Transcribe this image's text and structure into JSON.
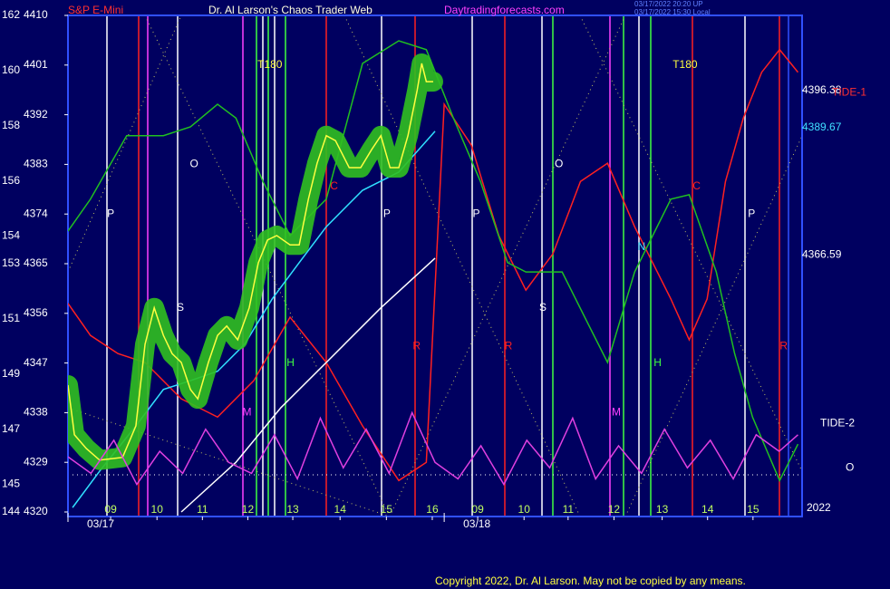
{
  "chart_data": {
    "type": "line",
    "title": "Dr. Al Larson's Chaos Trader Web",
    "subtitle": "S&P E-Mini",
    "site": "Daytradingforecasts.com",
    "stamp": [
      "03/17/2022 20:20 UP",
      "03/17/2022 15:30 Local"
    ],
    "copyright": "Copyright 2022, Dr. Al Larson. May not be copied by any means.",
    "year_label": "2022",
    "dates": [
      {
        "x": 0,
        "label": "03/17"
      },
      {
        "x": 8.2,
        "label": "03/18"
      }
    ],
    "xlim": [
      0,
      16
    ],
    "xticks": [
      {
        "value": 0.93,
        "label": "09"
      },
      {
        "value": 1.94,
        "label": "10"
      },
      {
        "value": 2.93,
        "label": "11"
      },
      {
        "value": 3.92,
        "label": "12"
      },
      {
        "value": 4.9,
        "label": "13"
      },
      {
        "value": 5.93,
        "label": "14"
      },
      {
        "value": 6.94,
        "label": "15"
      },
      {
        "value": 7.94,
        "label": "16"
      },
      {
        "value": 8.93,
        "label": "09"
      },
      {
        "value": 9.94,
        "label": "10"
      },
      {
        "value": 10.9,
        "label": "11"
      },
      {
        "value": 11.9,
        "label": "12"
      },
      {
        "value": 12.95,
        "label": "13"
      },
      {
        "value": 13.94,
        "label": "14"
      },
      {
        "value": 14.93,
        "label": "15"
      }
    ],
    "ylim": [
      4320,
      4410
    ],
    "yticks": [
      4320,
      4329,
      4338,
      4347,
      4356,
      4365,
      4374,
      4383,
      4392,
      4401,
      4410
    ],
    "y2lim": [
      144,
      162
    ],
    "y2ticks": [
      144,
      145,
      147,
      149,
      151,
      153,
      154,
      156,
      158,
      160,
      162
    ],
    "series": [
      {
        "color": "#ff2020",
        "x": [
          0,
          0.49,
          1.09,
          1.68,
          2.47,
          3.26,
          4.05,
          4.84,
          5.63,
          6.42,
          7.21,
          7.81,
          8.2,
          8.79,
          9.39,
          9.98,
          10.57,
          11.17,
          11.76,
          12.35,
          13.14,
          13.54,
          13.93,
          14.33,
          14.72,
          15.12,
          15.51,
          15.91
        ],
        "values": [
          4357.8,
          4352.0,
          4348.7,
          4347.1,
          4340.5,
          4337.2,
          4343.8,
          4355.3,
          4347.1,
          4335.6,
          4325.7,
          4329.0,
          4393.9,
          4386.5,
          4370.1,
          4360.2,
          4366.8,
          4379.9,
          4383.2,
          4371.7,
          4358.6,
          4351.2,
          4358.6,
          4379.9,
          4391.4,
          4399.7,
          4403.8,
          4399.7
        ]
      },
      {
        "color": "#20c020",
        "x": [
          0,
          0.49,
          1.28,
          2.08,
          2.67,
          3.26,
          3.66,
          4.25,
          4.84,
          5.63,
          6.42,
          7.21,
          7.81,
          8.4,
          8.99,
          9.58,
          9.98,
          10.77,
          11.36,
          11.76,
          12.35,
          13.14,
          13.54,
          14.13,
          14.53,
          14.92,
          15.51,
          15.91
        ],
        "values": [
          4370.9,
          4376.7,
          4388.2,
          4388.2,
          4389.8,
          4393.9,
          4391.4,
          4379.9,
          4370.1,
          4376.7,
          4401.3,
          4405.4,
          4403.8,
          4391.4,
          4379.9,
          4365.2,
          4363.5,
          4363.5,
          4353.7,
          4347.1,
          4363.5,
          4376.7,
          4377.5,
          4363.5,
          4348.7,
          4337.2,
          4325.7,
          4332.3
        ]
      },
      {
        "color": "#ffffff",
        "x": [
          2.47,
          3.66,
          4.64,
          5.63,
          6.82,
          8.0
        ],
        "values": [
          4320.0,
          4329.0,
          4338.9,
          4347.1,
          4357.0,
          4366.0
        ]
      },
      {
        "color": "#30e0ff",
        "x": [
          0.1,
          0.69,
          1.48,
          2.08,
          2.67,
          3.26,
          3.85,
          4.45,
          5.04,
          5.63,
          6.42,
          7.21,
          8.0
        ],
        "values": [
          4320.8,
          4327.4,
          4335.6,
          4342.2,
          4343.8,
          4345.5,
          4350.4,
          4358.6,
          4365.2,
          4371.7,
          4378.3,
          4381.6,
          4389.0
        ]
      },
      {
        "color": "#ffff40",
        "x": [
          0,
          0.14,
          0.4,
          0.69,
          1.19,
          1.48,
          1.68,
          1.88,
          2.08,
          2.27,
          2.47,
          2.67,
          2.83,
          3.06,
          3.26,
          3.46,
          3.7,
          3.95,
          4.15,
          4.35,
          4.55,
          4.84,
          5.04,
          5.24,
          5.43,
          5.63,
          5.83,
          6.13,
          6.38,
          6.62,
          6.82,
          7.02,
          7.21,
          7.41,
          7.61,
          7.71,
          7.81,
          7.96
        ],
        "values": [
          4343.0,
          4334.0,
          4331.5,
          4329.4,
          4329.9,
          4335.6,
          4350.4,
          4357.0,
          4352.0,
          4348.7,
          4347.1,
          4342.2,
          4340.5,
          4347.1,
          4352.0,
          4353.7,
          4351.2,
          4357.0,
          4365.2,
          4369.3,
          4370.1,
          4368.4,
          4368.4,
          4376.7,
          4383.2,
          4388.2,
          4387.3,
          4382.4,
          4382.4,
          4385.7,
          4388.2,
          4382.4,
          4382.4,
          4388.2,
          4396.4,
          4401.3,
          4398.0,
          4398.0
        ]
      },
      {
        "color": "#e040e0",
        "x": [
          0,
          0.5,
          1.0,
          1.5,
          2.0,
          2.5,
          3.0,
          3.5,
          4.0,
          4.5,
          5.0,
          5.5,
          6.0,
          6.5,
          7.0,
          7.5,
          8.0,
          8.5,
          9.0,
          9.5,
          10.0,
          10.5,
          11.0,
          11.5,
          12.0,
          12.5,
          13.0,
          13.5,
          14.0,
          14.5,
          15.0,
          15.5,
          15.91
        ],
        "values": [
          4330,
          4327,
          4333,
          4325,
          4331,
          4327,
          4335,
          4329,
          4327,
          4334,
          4326,
          4337,
          4328,
          4335,
          4327,
          4338,
          4329,
          4326,
          4332,
          4325,
          4333,
          4328,
          4337,
          4326,
          4332,
          4327,
          4335,
          4328,
          4333,
          4326,
          4334,
          4331,
          4334
        ]
      }
    ],
    "right_labels": [
      {
        "value": 4396.38,
        "label": "4396.38",
        "color": "#ffffff"
      },
      {
        "value": 4389.67,
        "label": "4389.67",
        "color": "#40e0ff"
      },
      {
        "value": 4366.59,
        "label": "4366.59",
        "color": "#ffffff"
      }
    ],
    "tide_labels": [
      {
        "label": "TIDE-1",
        "value": 4396,
        "color": "#ff3030"
      },
      {
        "label": "TIDE-2",
        "value": 4336,
        "color": "#ffffff"
      }
    ],
    "marker_o": {
      "label": "O",
      "value": 4328
    },
    "annotations": [
      {
        "text": "P",
        "x": 0.93,
        "y": 4374,
        "color": "#ffffff"
      },
      {
        "text": "O",
        "x": 2.75,
        "y": 4383,
        "color": "#ffffff"
      },
      {
        "text": "S",
        "x": 2.45,
        "y": 4357,
        "color": "#ffffff"
      },
      {
        "text": "T180",
        "x": 4.4,
        "y": 4401,
        "color": "#ffff40"
      },
      {
        "text": "H",
        "x": 4.85,
        "y": 4347,
        "color": "#40ff40"
      },
      {
        "text": "M",
        "x": 3.9,
        "y": 4338,
        "color": "#ff40ff"
      },
      {
        "text": "C",
        "x": 5.8,
        "y": 4379,
        "color": "#ff2020"
      },
      {
        "text": "R",
        "x": 7.6,
        "y": 4350,
        "color": "#ff2020"
      },
      {
        "text": "P",
        "x": 6.95,
        "y": 4374,
        "color": "#ffffff"
      },
      {
        "text": "P",
        "x": 8.9,
        "y": 4374,
        "color": "#ffffff"
      },
      {
        "text": "O",
        "x": 10.7,
        "y": 4383,
        "color": "#ffffff"
      },
      {
        "text": "S",
        "x": 10.35,
        "y": 4357,
        "color": "#ffffff"
      },
      {
        "text": "T180",
        "x": 13.45,
        "y": 4401,
        "color": "#ffff40"
      },
      {
        "text": "R",
        "x": 9.6,
        "y": 4350,
        "color": "#ff2020"
      },
      {
        "text": "M",
        "x": 11.95,
        "y": 4338,
        "color": "#ff40ff"
      },
      {
        "text": "H",
        "x": 12.85,
        "y": 4347,
        "color": "#40ff40"
      },
      {
        "text": "N",
        "x": 12.5,
        "y": 4368,
        "color": "#40e0ff"
      },
      {
        "text": "C",
        "x": 13.7,
        "y": 4379,
        "color": "#ff2020"
      },
      {
        "text": "P",
        "x": 14.9,
        "y": 4374,
        "color": "#ffffff"
      },
      {
        "text": "R",
        "x": 15.6,
        "y": 4350,
        "color": "#ff2020"
      }
    ]
  }
}
